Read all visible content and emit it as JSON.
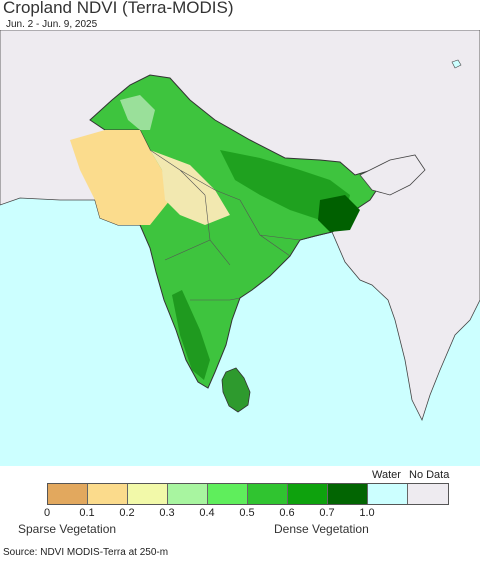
{
  "header": {
    "title": "Cropland NDVI (Terra-MODIS)",
    "date_range": "Jun. 2 - Jun. 9, 2025"
  },
  "map": {
    "colors": {
      "ocean": "#ccffff",
      "land_no_data": "#eeebf0",
      "boundary": "#444444",
      "dense": "#1fa11f",
      "very_dense": "#006000",
      "medium": "#63e063",
      "sparse": "#fbdc8d",
      "light": "#e8b06a"
    }
  },
  "legend": {
    "water_label": "Water",
    "nodata_label": "No Data",
    "colors": [
      "#e2a85e",
      "#fbdb8c",
      "#f2f9a9",
      "#a8f5a0",
      "#5fee5c",
      "#30c430",
      "#0ea20d",
      "#026502",
      "#ccffff",
      "#eeebf0"
    ],
    "ticks": [
      "0",
      "0.1",
      "0.2",
      "0.3",
      "0.4",
      "0.5",
      "0.6",
      "0.7",
      "1.0"
    ],
    "sparse_label": "Sparse Vegetation",
    "dense_label": "Dense Vegetation"
  },
  "source": "Source: NDVI MODIS-Terra at 250-m"
}
